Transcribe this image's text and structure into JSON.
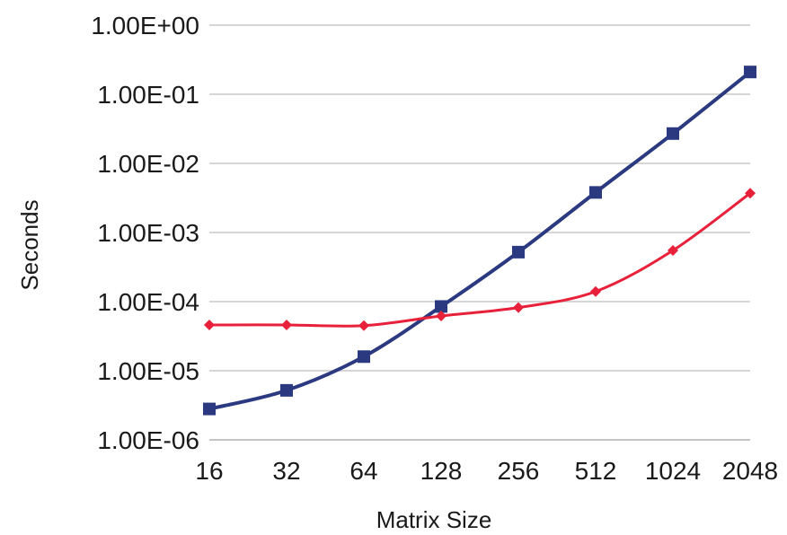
{
  "chart_data": {
    "type": "line",
    "xlabel": "Matrix Size",
    "ylabel": "Seconds",
    "categories": [
      "16",
      "32",
      "64",
      "128",
      "256",
      "512",
      "1024",
      "2048"
    ],
    "y_scale": "log",
    "ylim": [
      1e-06,
      1
    ],
    "y_ticks": [
      1e-06,
      1e-05,
      0.0001,
      0.001,
      0.01,
      0.1,
      1
    ],
    "y_tick_labels": [
      "1.00E-06",
      "1.00E-05",
      "1.00E-04",
      "1.00E-03",
      "1.00E-02",
      "1.00E-01",
      "1.00E+00"
    ],
    "grid": true,
    "legend": "none",
    "series": [
      {
        "color": "#2b3a80",
        "marker": "square",
        "values": [
          2.8e-06,
          5.2e-06,
          1.6e-05,
          8.5e-05,
          0.00052,
          0.0038,
          0.027,
          0.21
        ]
      },
      {
        "color": "#e8203a",
        "marker": "diamond",
        "values": [
          4.6e-05,
          4.6e-05,
          4.5e-05,
          6.2e-05,
          8.2e-05,
          0.00014,
          0.00055,
          0.0037
        ]
      }
    ]
  }
}
